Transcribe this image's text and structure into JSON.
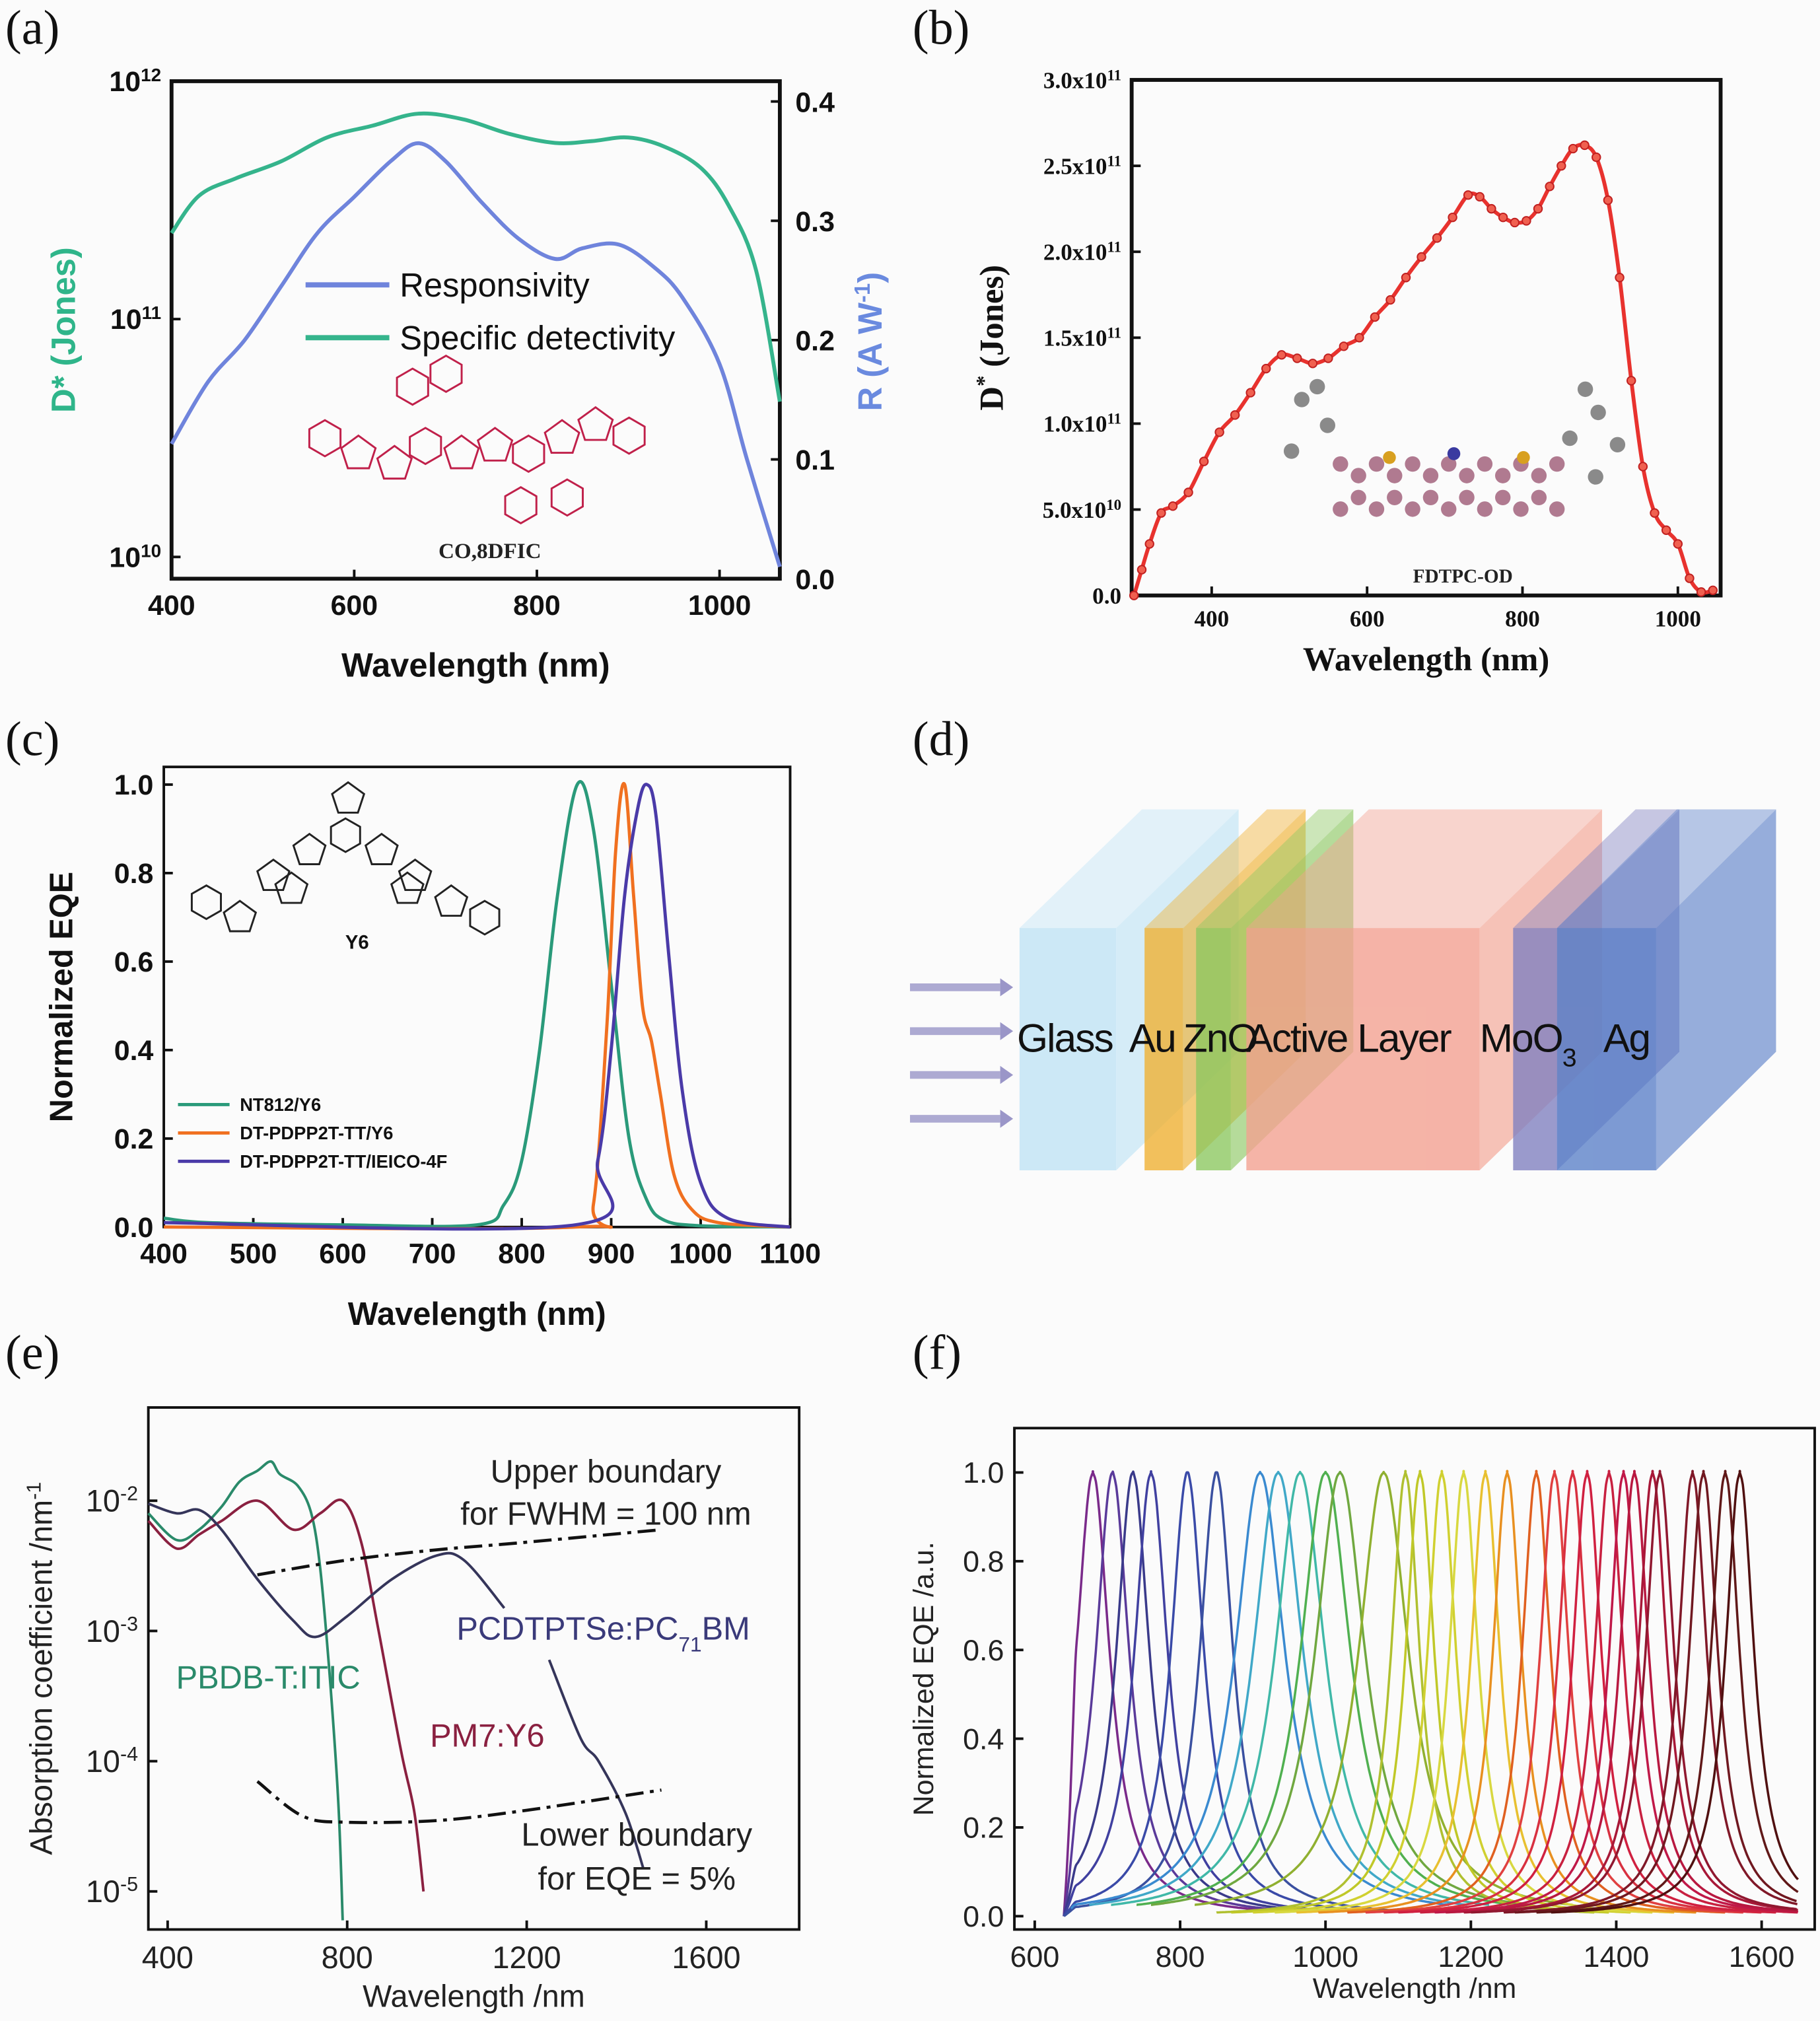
{
  "panel_labels": {
    "a": "(a)",
    "b": "(b)",
    "c": "(c)",
    "d": "(d)",
    "e": "(e)",
    "f": "(f)"
  },
  "chart_data": [
    {
      "id": "a",
      "type": "line",
      "xlabel": "Wavelength (nm)",
      "ylabel": "D* (Jones)",
      "y2label": "R (A W^{-1})",
      "xlim": [
        400,
        1066
      ],
      "ylim": [
        8100000000.0,
        1000000000000.0
      ],
      "yscale": "log",
      "y2lim": [
        0,
        0.417
      ],
      "xticks": [
        400,
        600,
        800,
        1000
      ],
      "xtick_labels": [
        "400",
        "600",
        "800",
        "1000"
      ],
      "yticks": [
        10000000000.0,
        100000000000.0,
        1000000000000.0
      ],
      "ytick_labels": [
        "10^{10}",
        "10^{11}",
        "10^{12}"
      ],
      "y2ticks": [
        0,
        0.1,
        0.2,
        0.3,
        0.4
      ],
      "y2tick_labels": [
        "0.0",
        "0.1",
        "0.2",
        "0.3",
        "0.4"
      ],
      "legend_position": "center",
      "series": [
        {
          "name": "Responsivity",
          "axis": "right",
          "color": "#6f84dc",
          "x": [
            400,
            440,
            480,
            520,
            560,
            600,
            640,
            670,
            700,
            740,
            780,
            820,
            850,
            890,
            930,
            960,
            1000,
            1030,
            1066
          ],
          "y": [
            0.113,
            0.165,
            0.2,
            0.245,
            0.29,
            0.32,
            0.35,
            0.365,
            0.35,
            0.315,
            0.285,
            0.268,
            0.277,
            0.28,
            0.26,
            0.235,
            0.18,
            0.1,
            0.01
          ]
        },
        {
          "name": "Specific detectivity",
          "axis": "left",
          "color": "#35b48c",
          "x": [
            400,
            430,
            470,
            520,
            570,
            620,
            670,
            720,
            770,
            820,
            860,
            900,
            940,
            980,
            1010,
            1040,
            1066
          ],
          "y": [
            230000000000.0,
            330000000000.0,
            390000000000.0,
            460000000000.0,
            580000000000.0,
            650000000000.0,
            730000000000.0,
            690000000000.0,
            600000000000.0,
            550000000000.0,
            560000000000.0,
            580000000000.0,
            530000000000.0,
            430000000000.0,
            300000000000.0,
            160000000000.0,
            45000000000.0
          ]
        }
      ],
      "inset_label": "CO,8DFIC"
    },
    {
      "id": "b",
      "type": "line",
      "xlabel": "Wavelength (nm)",
      "ylabel": "D^{*} (Jones)",
      "xlim": [
        297,
        1055
      ],
      "ylim": [
        0,
        300000000000.0
      ],
      "yscale": "linear",
      "xticks": [
        400,
        600,
        800,
        1000
      ],
      "xtick_labels": [
        "400",
        "600",
        "800",
        "1000"
      ],
      "yticks": [
        0,
        50000000000.0,
        100000000000.0,
        150000000000.0,
        200000000000.0,
        250000000000.0,
        300000000000.0
      ],
      "ytick_labels": [
        "0.0",
        "5.0x10^{10}",
        "1.0x10^{11}",
        "1.5x10^{11}",
        "2.0x10^{11}",
        "2.5x10^{11}",
        "3.0x10^{11}"
      ],
      "series": [
        {
          "color": "#e8322e",
          "markers": true,
          "x": [
            300,
            310,
            320,
            335,
            350,
            370,
            390,
            410,
            430,
            450,
            470,
            490,
            510,
            530,
            550,
            570,
            590,
            610,
            630,
            650,
            670,
            690,
            710,
            730,
            745,
            760,
            775,
            790,
            805,
            820,
            835,
            850,
            865,
            880,
            895,
            910,
            925,
            940,
            955,
            970,
            985,
            1000,
            1015,
            1030,
            1045
          ],
          "y": [
            0,
            15000000000.0,
            30000000000.0,
            48000000000.0,
            52000000000.0,
            60000000000.0,
            78000000000.0,
            95000000000.0,
            105000000000.0,
            118000000000.0,
            132000000000.0,
            140000000000.0,
            138000000000.0,
            135000000000.0,
            138000000000.0,
            145000000000.0,
            150000000000.0,
            162000000000.0,
            172000000000.0,
            185000000000.0,
            197000000000.0,
            208000000000.0,
            220000000000.0,
            233000000000.0,
            232000000000.0,
            225000000000.0,
            220000000000.0,
            217000000000.0,
            218000000000.0,
            225000000000.0,
            238000000000.0,
            250000000000.0,
            260000000000.0,
            262000000000.0,
            255000000000.0,
            230000000000.0,
            185000000000.0,
            125000000000.0,
            75000000000.0,
            48000000000.0,
            38000000000.0,
            30000000000.0,
            10000000000.0,
            2000000000.0,
            3000000000.0
          ]
        }
      ],
      "inset_label": "FDTPC-OD"
    },
    {
      "id": "c",
      "type": "line",
      "xlabel": "Wavelength (nm)",
      "ylabel": "Normalized EQE",
      "xlim": [
        400,
        1100
      ],
      "ylim": [
        0,
        1.04
      ],
      "yscale": "linear",
      "xticks": [
        400,
        500,
        600,
        700,
        800,
        900,
        1000,
        1100
      ],
      "xtick_labels": [
        "400",
        "500",
        "600",
        "700",
        "800",
        "900",
        "1000",
        "1100"
      ],
      "yticks": [
        0,
        0.2,
        0.4,
        0.6,
        0.8,
        1.0
      ],
      "ytick_labels": [
        "0.0",
        "0.2",
        "0.4",
        "0.6",
        "0.8",
        "1.0"
      ],
      "legend_position": "lower-left",
      "series": [
        {
          "name": "NT812/Y6",
          "color": "#2a9a7a",
          "x": [
            400,
            450,
            600,
            750,
            780,
            800,
            820,
            840,
            862,
            880,
            900,
            920,
            940,
            960,
            1000,
            1100
          ],
          "y": [
            0.02,
            0.01,
            0.005,
            0.005,
            0.05,
            0.15,
            0.4,
            0.75,
            1.0,
            0.9,
            0.55,
            0.2,
            0.06,
            0.015,
            0.003,
            0
          ]
        },
        {
          "name": "DT-PDPP2T-TT/Y6",
          "color": "#f07020",
          "x": [
            400,
            860,
            880,
            895,
            905,
            915,
            925,
            935,
            945,
            955,
            970,
            990,
            1020,
            1100
          ],
          "y": [
            0,
            0,
            0.05,
            0.45,
            0.85,
            1.0,
            0.75,
            0.5,
            0.42,
            0.3,
            0.12,
            0.04,
            0.01,
            0
          ]
        },
        {
          "name": "DT-PDPP2T-TT/IEICO-4F",
          "color": "#4a3aa8",
          "x": [
            400,
            860,
            885,
            900,
            915,
            930,
            940,
            950,
            965,
            980,
            1000,
            1030,
            1100
          ],
          "y": [
            0.01,
            0.005,
            0.15,
            0.4,
            0.75,
            0.95,
            1.0,
            0.93,
            0.6,
            0.3,
            0.1,
            0.02,
            0
          ]
        }
      ],
      "inset_label": "Y6"
    },
    {
      "id": "e",
      "type": "line",
      "xlabel": "Wavelength /nm",
      "ylabel": "Absorption coefficient /nm^{-1}",
      "xlim": [
        357,
        1807
      ],
      "ylim": [
        5.1e-06,
        0.052
      ],
      "yscale": "log",
      "xticks": [
        400,
        800,
        1200,
        1600
      ],
      "xtick_labels": [
        "400",
        "800",
        "1200",
        "1600"
      ],
      "yticks": [
        0.01,
        0.001,
        0.0001,
        1e-05
      ],
      "ytick_labels": [
        "10^{-2}",
        "10^{-3}",
        "10^{-4}",
        "10^{-5}"
      ],
      "series": [
        {
          "name": "PBDB-T:ITIC",
          "color": "#2a8a6a",
          "x": [
            357,
            420,
            470,
            520,
            560,
            600,
            630,
            650,
            690,
            720,
            740,
            760,
            780,
            790
          ],
          "y": [
            0.008,
            0.005,
            0.006,
            0.009,
            0.014,
            0.017,
            0.02,
            0.016,
            0.013,
            0.008,
            0.003,
            0.0005,
            5e-05,
            6e-06
          ]
        },
        {
          "name": "PM7:Y6",
          "color": "#8a2040",
          "x": [
            357,
            420,
            470,
            520,
            600,
            680,
            740,
            790,
            830,
            870,
            920,
            950,
            970
          ],
          "y": [
            0.007,
            0.0043,
            0.0055,
            0.007,
            0.01,
            0.006,
            0.008,
            0.01,
            0.005,
            0.001,
            0.00012,
            4e-05,
            1e-05
          ]
        },
        {
          "name": "PCDTPTSe:PC_{71}BM",
          "color": "#35355a",
          "x": [
            357,
            420,
            470,
            520,
            600,
            680,
            730,
            800,
            900,
            1000,
            1060,
            1150
          ],
          "y": [
            0.0095,
            0.008,
            0.0085,
            0.006,
            0.0025,
            0.0012,
            0.0009,
            0.0013,
            0.0025,
            0.0038,
            0.0035,
            0.0015
          ]
        },
        {
          "name": "PCDTPTSe:PC_{71}BM (tail)",
          "color": "#35355a",
          "x": [
            1250,
            1320,
            1360,
            1420,
            1460
          ],
          "y": [
            0.0006,
            0.00015,
            0.0001,
            4e-05,
            1.5e-05
          ]
        },
        {
          "name": "Upper boundary for FWHM = 100 nm",
          "color": "#111111",
          "dash": true,
          "x": [
            600,
            800,
            1000,
            1200,
            1500
          ],
          "y": [
            0.0027,
            0.0035,
            0.0042,
            0.0048,
            0.006
          ]
        },
        {
          "name": "Lower boundary for EQE = 5%",
          "color": "#111111",
          "dash": true,
          "x": [
            600,
            700,
            800,
            1000,
            1200,
            1500
          ],
          "y": [
            7e-05,
            3.8e-05,
            3.4e-05,
            3.5e-05,
            4.2e-05,
            6e-05
          ]
        }
      ],
      "annotations": {
        "upper_1": "Upper boundary",
        "upper_2": "for FWHM = 100 nm",
        "pcdtptse": "PCDTPTSe:PC_{71}BM",
        "pbdb": "PBDB-T:ITIC",
        "pm7": "PM7:Y6",
        "lower_1": "Lower boundary",
        "lower_2": "for EQE = 5%"
      }
    },
    {
      "id": "f",
      "type": "line",
      "xlabel": "Wavelength /nm",
      "ylabel": "Normalized EQE /a.u.",
      "xlim": [
        572,
        1673
      ],
      "ylim": [
        -0.03,
        1.1
      ],
      "yscale": "linear",
      "xticks": [
        600,
        800,
        1000,
        1200,
        1400,
        1600
      ],
      "xtick_labels": [
        "600",
        "800",
        "1000",
        "1200",
        "1400",
        "1600"
      ],
      "yticks": [
        0,
        0.2,
        0.4,
        0.6,
        0.8,
        1.0
      ],
      "ytick_labels": [
        "0.0",
        "0.2",
        "0.4",
        "0.6",
        "0.8",
        "1.0"
      ],
      "peak_value": 1.0,
      "peaks_nm": [
        680,
        707,
        735,
        760,
        810,
        850,
        910,
        935,
        965,
        1000,
        1020,
        1080,
        1110,
        1130,
        1160,
        1190,
        1220,
        1250,
        1290,
        1315,
        1340,
        1360,
        1390,
        1410,
        1425,
        1450,
        1460,
        1505,
        1520,
        1550,
        1570
      ],
      "colors": [
        "#7a2a8a",
        "#5a3a9a",
        "#3a3a8a",
        "#4040a0",
        "#3a4aa8",
        "#3a50a0",
        "#3a8ad0",
        "#40a8c8",
        "#40b8a8",
        "#50b050",
        "#70a840",
        "#90b030",
        "#b0c030",
        "#c0c828",
        "#d0d030",
        "#d8d840",
        "#e8c030",
        "#e89020",
        "#e06020",
        "#e04040",
        "#d83040",
        "#d02040",
        "#c82040",
        "#c01848",
        "#b81840",
        "#a81838",
        "#901830",
        "#801828",
        "#701820",
        "#601818",
        "#501010"
      ]
    }
  ],
  "diagram_d": {
    "layers": [
      {
        "label": "Glass",
        "color": "#bfe3f5"
      },
      {
        "label": "Au",
        "color": "#f0b030"
      },
      {
        "label": "ZnO",
        "color": "#8cc860"
      },
      {
        "label": "Active Layer",
        "color": "#f4a090"
      },
      {
        "label": "MoO_{3}",
        "color": "#8080c0"
      },
      {
        "label": "Ag",
        "color": "#5a80c8"
      }
    ],
    "arrow_color": "#9a96c8",
    "incident_arrows": 4
  }
}
